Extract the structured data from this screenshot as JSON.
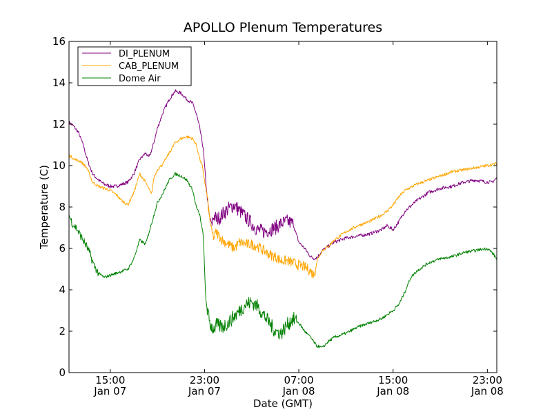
{
  "chart_data": {
    "type": "line",
    "title": "APOLLO Plenum Temperatures",
    "xlabel": "Date (GMT)",
    "ylabel": "Temperature (C)",
    "xlim": [
      11.5,
      47.8
    ],
    "ylim": [
      0,
      16
    ],
    "x_unit": "hours since 2013-01-07 00:00 GMT",
    "x_ticks": [
      {
        "x": 15,
        "line1": "15:00",
        "line2": "Jan 07"
      },
      {
        "x": 23,
        "line1": "23:00",
        "line2": "Jan 07"
      },
      {
        "x": 31,
        "line1": "07:00",
        "line2": "Jan 08"
      },
      {
        "x": 39,
        "line1": "15:00",
        "line2": "Jan 08"
      },
      {
        "x": 47,
        "line1": "23:00",
        "line2": "Jan 08"
      }
    ],
    "y_ticks": [
      0,
      2,
      4,
      6,
      8,
      10,
      12,
      14,
      16
    ],
    "legend_position": "upper-left",
    "series": [
      {
        "name": "DI_PLENUM",
        "color": "#800080",
        "x": [
          11.5,
          11.9,
          12.3,
          12.7,
          13.1,
          13.5,
          14.0,
          14.5,
          15.0,
          15.5,
          16.0,
          16.5,
          17.0,
          17.5,
          18.0,
          18.3,
          18.6,
          19.0,
          19.5,
          20.0,
          20.5,
          21.0,
          21.5,
          22.0,
          22.3,
          22.6,
          22.9,
          23.0,
          23.2,
          23.4,
          23.6,
          23.8,
          24.0,
          24.3,
          24.6,
          25.0,
          25.5,
          26.0,
          26.5,
          27.0,
          27.5,
          28.0,
          28.5,
          29.0,
          29.5,
          30.0,
          30.5,
          31.0,
          31.5,
          32.0,
          32.3,
          32.6,
          33.0,
          33.5,
          34.0,
          35.0,
          36.0,
          37.0,
          38.0,
          38.5,
          39.0,
          39.5,
          40.0,
          41.0,
          42.0,
          43.0,
          44.0,
          45.0,
          46.0,
          47.0,
          47.4,
          47.8
        ],
        "values": [
          12.1,
          11.9,
          11.6,
          11.0,
          10.2,
          9.6,
          9.3,
          9.1,
          9.0,
          9.0,
          9.1,
          9.2,
          9.6,
          10.3,
          10.6,
          10.4,
          10.9,
          11.8,
          12.6,
          13.2,
          13.6,
          13.5,
          13.2,
          13.0,
          12.5,
          11.8,
          10.8,
          10.0,
          8.6,
          7.6,
          7.2,
          7.6,
          7.4,
          7.5,
          7.7,
          7.9,
          8.1,
          7.8,
          7.5,
          7.2,
          6.9,
          6.8,
          6.9,
          7.0,
          7.2,
          7.3,
          7.2,
          6.3,
          6.0,
          5.6,
          5.5,
          5.6,
          5.9,
          6.1,
          6.3,
          6.5,
          6.6,
          6.7,
          6.9,
          7.1,
          6.9,
          7.3,
          7.8,
          8.3,
          8.7,
          8.9,
          9.0,
          9.2,
          9.3,
          9.2,
          9.2,
          9.4
        ]
      },
      {
        "name": "CAB_PLENUM",
        "color": "#FFA500",
        "x": [
          11.5,
          12.0,
          12.5,
          13.0,
          13.3,
          13.5,
          14.0,
          14.5,
          15.0,
          15.5,
          16.0,
          16.5,
          17.0,
          17.5,
          18.0,
          18.5,
          18.7,
          19.0,
          19.5,
          20.0,
          20.5,
          21.0,
          21.5,
          22.0,
          22.3,
          22.6,
          22.8,
          23.0,
          23.2,
          23.4,
          23.6,
          23.8,
          24.0,
          24.5,
          25.0,
          25.5,
          26.0,
          26.5,
          27.0,
          27.5,
          28.0,
          28.5,
          29.0,
          29.5,
          30.0,
          30.5,
          31.0,
          31.5,
          32.0,
          32.3,
          32.6,
          33.0,
          33.5,
          34.0,
          35.0,
          36.0,
          37.0,
          38.0,
          38.5,
          39.0,
          39.5,
          40.0,
          41.0,
          42.0,
          43.0,
          44.0,
          45.0,
          46.0,
          47.0,
          47.8
        ],
        "values": [
          10.5,
          10.3,
          10.2,
          9.9,
          9.5,
          9.2,
          9.0,
          8.9,
          8.8,
          8.6,
          8.3,
          8.1,
          8.7,
          9.6,
          9.2,
          8.6,
          9.4,
          9.8,
          10.1,
          10.6,
          11.1,
          11.3,
          11.4,
          11.3,
          11.0,
          10.3,
          10.0,
          9.3,
          8.6,
          7.6,
          6.8,
          6.5,
          6.8,
          6.4,
          6.2,
          6.0,
          6.3,
          6.2,
          6.2,
          6.1,
          5.9,
          5.7,
          5.6,
          5.4,
          5.4,
          5.3,
          5.2,
          5.1,
          4.9,
          4.7,
          5.5,
          5.9,
          6.1,
          6.4,
          6.8,
          7.1,
          7.3,
          7.6,
          7.8,
          8.1,
          8.5,
          8.8,
          9.1,
          9.3,
          9.5,
          9.7,
          9.8,
          9.9,
          10.0,
          10.1
        ]
      },
      {
        "name": "Dome Air",
        "color": "#008000",
        "x": [
          11.5,
          11.8,
          12.1,
          12.4,
          12.7,
          13.0,
          13.3,
          13.6,
          14.0,
          14.5,
          15.0,
          15.5,
          16.0,
          16.5,
          17.0,
          17.5,
          18.0,
          18.3,
          18.6,
          19.0,
          19.5,
          20.0,
          20.5,
          21.0,
          21.5,
          22.0,
          22.3,
          22.6,
          22.9,
          23.0,
          23.1,
          23.3,
          23.5,
          23.8,
          24.0,
          24.5,
          25.0,
          25.5,
          26.0,
          26.5,
          27.0,
          27.5,
          28.0,
          28.5,
          29.0,
          29.5,
          30.0,
          30.5,
          31.0,
          31.5,
          32.0,
          32.5,
          33.0,
          33.5,
          34.0,
          35.0,
          36.0,
          37.0,
          38.0,
          38.5,
          39.0,
          39.5,
          40.0,
          40.5,
          41.0,
          42.0,
          43.0,
          44.0,
          45.0,
          46.0,
          47.0,
          47.4,
          47.8
        ],
        "values": [
          7.6,
          7.2,
          7.0,
          6.7,
          6.4,
          6.1,
          5.7,
          5.2,
          4.8,
          4.6,
          4.7,
          4.8,
          4.9,
          5.0,
          5.5,
          6.4,
          6.2,
          6.8,
          7.4,
          8.2,
          8.7,
          9.3,
          9.6,
          9.5,
          9.3,
          8.8,
          8.0,
          7.6,
          6.6,
          5.0,
          3.6,
          2.8,
          2.3,
          2.1,
          2.3,
          2.2,
          2.4,
          2.7,
          3.0,
          3.3,
          3.4,
          3.2,
          2.8,
          2.4,
          2.0,
          1.9,
          2.3,
          2.6,
          2.4,
          2.0,
          1.7,
          1.3,
          1.2,
          1.5,
          1.7,
          1.9,
          2.2,
          2.4,
          2.6,
          2.8,
          3.0,
          3.3,
          3.9,
          4.6,
          4.9,
          5.3,
          5.5,
          5.6,
          5.8,
          5.9,
          6.0,
          5.8,
          5.5
        ]
      }
    ]
  }
}
